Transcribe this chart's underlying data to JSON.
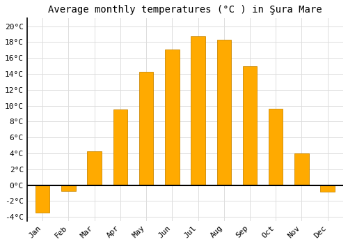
{
  "months": [
    "Jan",
    "Feb",
    "Mar",
    "Apr",
    "May",
    "Jun",
    "Jul",
    "Aug",
    "Sep",
    "Oct",
    "Nov",
    "Dec"
  ],
  "temperatures": [
    -3.5,
    -0.7,
    4.3,
    9.5,
    14.3,
    17.1,
    18.7,
    18.3,
    15.0,
    9.6,
    4.0,
    -0.8
  ],
  "bar_color": "#FFAA00",
  "bar_edge_color": "#CC8800",
  "title": "Average monthly temperatures (°C ) in Şura Mare",
  "ylim": [
    -4.5,
    21
  ],
  "yticks": [
    -4,
    -2,
    0,
    2,
    4,
    6,
    8,
    10,
    12,
    14,
    16,
    18,
    20
  ],
  "ytick_labels": [
    "-4°C",
    "-2°C",
    "0°C",
    "2°C",
    "4°C",
    "6°C",
    "8°C",
    "10°C",
    "12°C",
    "14°C",
    "16°C",
    "18°C",
    "20°C"
  ],
  "background_color": "#ffffff",
  "grid_color": "#dddddd",
  "zero_line_color": "#000000",
  "left_spine_color": "#000000",
  "title_fontsize": 10,
  "tick_fontsize": 8,
  "bar_width": 0.55
}
